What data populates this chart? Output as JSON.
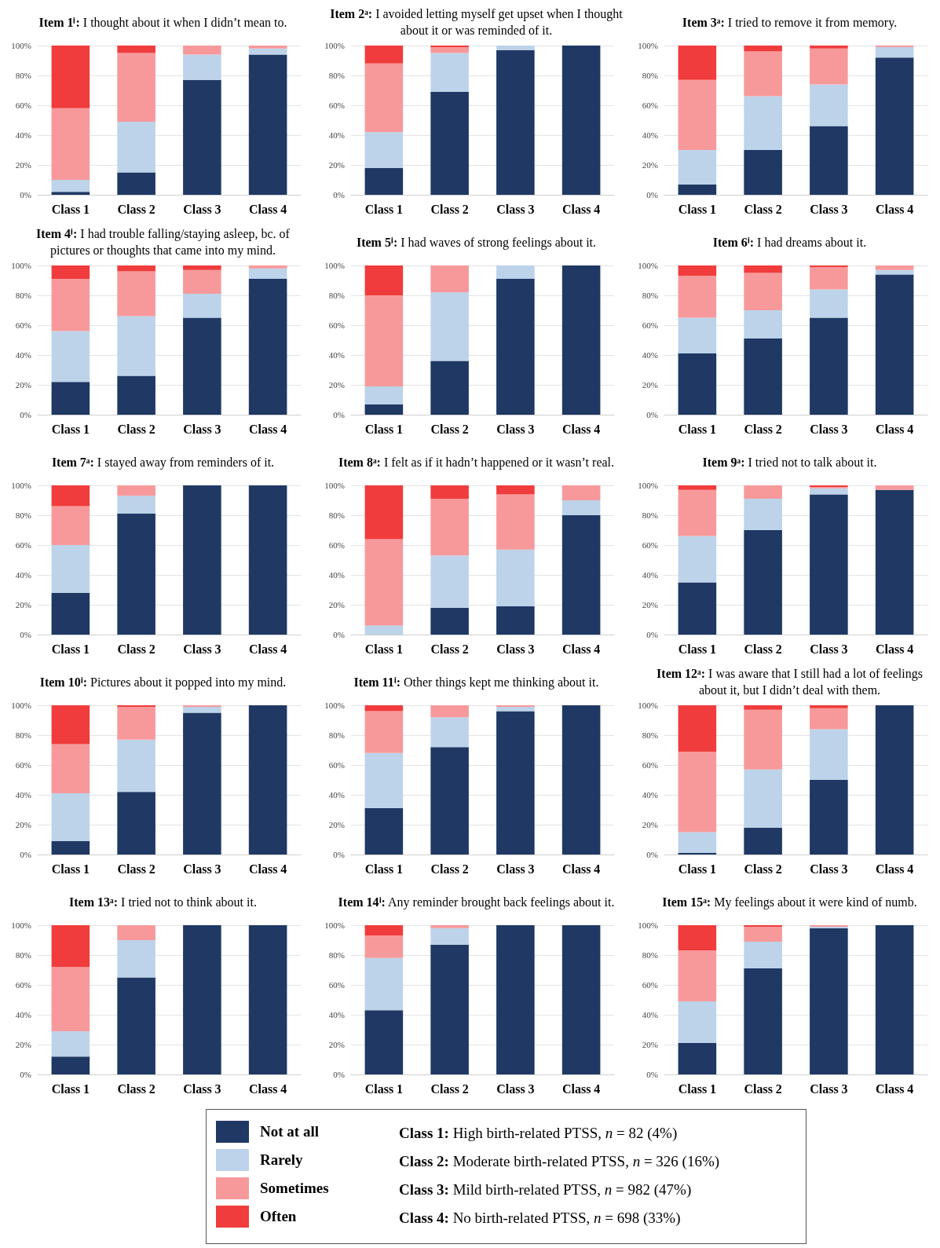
{
  "chart_data": [
    {
      "type": "bar",
      "stacked": true,
      "title": "Item 1ⁱ: I thought about it when I didn’t mean to.",
      "categories": [
        "Class 1",
        "Class 2",
        "Class 3",
        "Class 4"
      ],
      "series": [
        {
          "name": "Not at all",
          "color": "#1f3864",
          "values": [
            2,
            15,
            77,
            94
          ]
        },
        {
          "name": "Rarely",
          "color": "#bcd3ea",
          "values": [
            8,
            34,
            17,
            4
          ]
        },
        {
          "name": "Sometimes",
          "color": "#f7999b",
          "values": [
            48,
            46,
            6,
            2
          ]
        },
        {
          "name": "Often",
          "color": "#f03c3c",
          "values": [
            42,
            5,
            0,
            0
          ]
        }
      ],
      "ylim": [
        0,
        100
      ],
      "yticks": [
        {
          "value": 0,
          "label": "0%"
        },
        {
          "value": 20,
          "label": "20%"
        },
        {
          "value": 40,
          "label": "40%"
        },
        {
          "value": 60,
          "label": "60%"
        },
        {
          "value": 80,
          "label": "80%"
        },
        {
          "value": 100,
          "label": "100%"
        }
      ],
      "grid": "y",
      "legend": "bottom"
    },
    {
      "type": "bar",
      "stacked": true,
      "title": "Item 2ᵃ: I avoided letting myself get upset when I thought about it or was reminded of it.",
      "categories": [
        "Class 1",
        "Class 2",
        "Class 3",
        "Class 4"
      ],
      "series": [
        {
          "name": "Not at all",
          "color": "#1f3864",
          "values": [
            18,
            69,
            97,
            100
          ]
        },
        {
          "name": "Rarely",
          "color": "#bcd3ea",
          "values": [
            24,
            26,
            3,
            0
          ]
        },
        {
          "name": "Sometimes",
          "color": "#f7999b",
          "values": [
            46,
            4,
            0,
            0
          ]
        },
        {
          "name": "Often",
          "color": "#f03c3c",
          "values": [
            12,
            1,
            0,
            0
          ]
        }
      ],
      "ylim": [
        0,
        100
      ],
      "yticks": [
        {
          "value": 0,
          "label": "0%"
        },
        {
          "value": 20,
          "label": "20%"
        },
        {
          "value": 40,
          "label": "40%"
        },
        {
          "value": 60,
          "label": "60%"
        },
        {
          "value": 80,
          "label": "80%"
        },
        {
          "value": 100,
          "label": "100%"
        }
      ],
      "grid": "y",
      "legend": "bottom"
    },
    {
      "type": "bar",
      "stacked": true,
      "title": "Item 3ᵃ: I tried to remove it from memory.",
      "categories": [
        "Class 1",
        "Class 2",
        "Class 3",
        "Class 4"
      ],
      "series": [
        {
          "name": "Not at all",
          "color": "#1f3864",
          "values": [
            7,
            30,
            46,
            92
          ]
        },
        {
          "name": "Rarely",
          "color": "#bcd3ea",
          "values": [
            23,
            36,
            28,
            7
          ]
        },
        {
          "name": "Sometimes",
          "color": "#f7999b",
          "values": [
            47,
            30,
            24,
            1
          ]
        },
        {
          "name": "Often",
          "color": "#f03c3c",
          "values": [
            23,
            4,
            2,
            0
          ]
        }
      ],
      "ylim": [
        0,
        100
      ],
      "yticks": [
        {
          "value": 0,
          "label": "0%"
        },
        {
          "value": 20,
          "label": "20%"
        },
        {
          "value": 40,
          "label": "40%"
        },
        {
          "value": 60,
          "label": "60%"
        },
        {
          "value": 80,
          "label": "80%"
        },
        {
          "value": 100,
          "label": "100%"
        }
      ],
      "grid": "y",
      "legend": "bottom"
    },
    {
      "type": "bar",
      "stacked": true,
      "title": "Item 4ⁱ: I had trouble falling/staying asleep, bc. of pictures or thoughts that came into my mind.",
      "categories": [
        "Class 1",
        "Class 2",
        "Class 3",
        "Class 4"
      ],
      "series": [
        {
          "name": "Not at all",
          "color": "#1f3864",
          "values": [
            22,
            26,
            65,
            91
          ]
        },
        {
          "name": "Rarely",
          "color": "#bcd3ea",
          "values": [
            34,
            40,
            16,
            7
          ]
        },
        {
          "name": "Sometimes",
          "color": "#f7999b",
          "values": [
            35,
            30,
            16,
            2
          ]
        },
        {
          "name": "Often",
          "color": "#f03c3c",
          "values": [
            9,
            4,
            3,
            0
          ]
        }
      ],
      "ylim": [
        0,
        100
      ],
      "yticks": [
        {
          "value": 0,
          "label": "0%"
        },
        {
          "value": 20,
          "label": "20%"
        },
        {
          "value": 40,
          "label": "40%"
        },
        {
          "value": 60,
          "label": "60%"
        },
        {
          "value": 80,
          "label": "80%"
        },
        {
          "value": 100,
          "label": "100%"
        }
      ],
      "grid": "y",
      "legend": "bottom"
    },
    {
      "type": "bar",
      "stacked": true,
      "title": "Item 5ⁱ: I had waves of strong feelings about it.",
      "categories": [
        "Class 1",
        "Class 2",
        "Class 3",
        "Class 4"
      ],
      "series": [
        {
          "name": "Not at all",
          "color": "#1f3864",
          "values": [
            7,
            36,
            91,
            100
          ]
        },
        {
          "name": "Rarely",
          "color": "#bcd3ea",
          "values": [
            12,
            46,
            9,
            0
          ]
        },
        {
          "name": "Sometimes",
          "color": "#f7999b",
          "values": [
            61,
            18,
            0,
            0
          ]
        },
        {
          "name": "Often",
          "color": "#f03c3c",
          "values": [
            20,
            0,
            0,
            0
          ]
        }
      ],
      "ylim": [
        0,
        100
      ],
      "yticks": [
        {
          "value": 0,
          "label": "0%"
        },
        {
          "value": 20,
          "label": "20%"
        },
        {
          "value": 40,
          "label": "40%"
        },
        {
          "value": 60,
          "label": "60%"
        },
        {
          "value": 80,
          "label": "80%"
        },
        {
          "value": 100,
          "label": "100%"
        }
      ],
      "grid": "y",
      "legend": "bottom"
    },
    {
      "type": "bar",
      "stacked": true,
      "title": "Item 6ⁱ: I had dreams about it.",
      "categories": [
        "Class 1",
        "Class 2",
        "Class 3",
        "Class 4"
      ],
      "series": [
        {
          "name": "Not at all",
          "color": "#1f3864",
          "values": [
            41,
            51,
            65,
            94
          ]
        },
        {
          "name": "Rarely",
          "color": "#bcd3ea",
          "values": [
            24,
            19,
            19,
            3
          ]
        },
        {
          "name": "Sometimes",
          "color": "#f7999b",
          "values": [
            28,
            25,
            15,
            3
          ]
        },
        {
          "name": "Often",
          "color": "#f03c3c",
          "values": [
            7,
            5,
            1,
            0
          ]
        }
      ],
      "ylim": [
        0,
        100
      ],
      "yticks": [
        {
          "value": 0,
          "label": "0%"
        },
        {
          "value": 20,
          "label": "20%"
        },
        {
          "value": 40,
          "label": "40%"
        },
        {
          "value": 60,
          "label": "60%"
        },
        {
          "value": 80,
          "label": "80%"
        },
        {
          "value": 100,
          "label": "100%"
        }
      ],
      "grid": "y",
      "legend": "bottom"
    },
    {
      "type": "bar",
      "stacked": true,
      "title": "Item 7ᵃ: I stayed away from reminders of it.",
      "categories": [
        "Class 1",
        "Class 2",
        "Class 3",
        "Class 4"
      ],
      "series": [
        {
          "name": "Not at all",
          "color": "#1f3864",
          "values": [
            28,
            81,
            100,
            100
          ]
        },
        {
          "name": "Rarely",
          "color": "#bcd3ea",
          "values": [
            32,
            12,
            0,
            0
          ]
        },
        {
          "name": "Sometimes",
          "color": "#f7999b",
          "values": [
            26,
            7,
            0,
            0
          ]
        },
        {
          "name": "Often",
          "color": "#f03c3c",
          "values": [
            14,
            0,
            0,
            0
          ]
        }
      ],
      "ylim": [
        0,
        100
      ],
      "yticks": [
        {
          "value": 0,
          "label": "0%"
        },
        {
          "value": 20,
          "label": "20%"
        },
        {
          "value": 40,
          "label": "40%"
        },
        {
          "value": 60,
          "label": "60%"
        },
        {
          "value": 80,
          "label": "80%"
        },
        {
          "value": 100,
          "label": "100%"
        }
      ],
      "grid": "y",
      "legend": "bottom"
    },
    {
      "type": "bar",
      "stacked": true,
      "title": "Item 8ᵃ: I felt as if it hadn’t happened or it wasn’t real.",
      "categories": [
        "Class 1",
        "Class 2",
        "Class 3",
        "Class 4"
      ],
      "series": [
        {
          "name": "Not at all",
          "color": "#1f3864",
          "values": [
            0,
            18,
            19,
            80
          ]
        },
        {
          "name": "Rarely",
          "color": "#bcd3ea",
          "values": [
            6,
            35,
            38,
            10
          ]
        },
        {
          "name": "Sometimes",
          "color": "#f7999b",
          "values": [
            58,
            38,
            37,
            10
          ]
        },
        {
          "name": "Often",
          "color": "#f03c3c",
          "values": [
            36,
            9,
            6,
            0
          ]
        }
      ],
      "ylim": [
        0,
        100
      ],
      "yticks": [
        {
          "value": 0,
          "label": "0%"
        },
        {
          "value": 20,
          "label": "20%"
        },
        {
          "value": 40,
          "label": "40%"
        },
        {
          "value": 60,
          "label": "60%"
        },
        {
          "value": 80,
          "label": "80%"
        },
        {
          "value": 100,
          "label": "100%"
        }
      ],
      "grid": "y",
      "legend": "bottom"
    },
    {
      "type": "bar",
      "stacked": true,
      "title": "Item 9ᵃ: I tried not to talk about it.",
      "categories": [
        "Class 1",
        "Class 2",
        "Class 3",
        "Class 4"
      ],
      "series": [
        {
          "name": "Not at all",
          "color": "#1f3864",
          "values": [
            35,
            70,
            94,
            97
          ]
        },
        {
          "name": "Rarely",
          "color": "#bcd3ea",
          "values": [
            31,
            21,
            4,
            0
          ]
        },
        {
          "name": "Sometimes",
          "color": "#f7999b",
          "values": [
            31,
            9,
            1,
            3
          ]
        },
        {
          "name": "Often",
          "color": "#f03c3c",
          "values": [
            3,
            0,
            1,
            0
          ]
        }
      ],
      "ylim": [
        0,
        100
      ],
      "yticks": [
        {
          "value": 0,
          "label": "0%"
        },
        {
          "value": 20,
          "label": "20%"
        },
        {
          "value": 40,
          "label": "40%"
        },
        {
          "value": 60,
          "label": "60%"
        },
        {
          "value": 80,
          "label": "80%"
        },
        {
          "value": 100,
          "label": "100%"
        }
      ],
      "grid": "y",
      "legend": "bottom"
    },
    {
      "type": "bar",
      "stacked": true,
      "title": "Item 10ⁱ: Pictures about it popped into my mind.",
      "categories": [
        "Class 1",
        "Class 2",
        "Class 3",
        "Class 4"
      ],
      "series": [
        {
          "name": "Not at all",
          "color": "#1f3864",
          "values": [
            9,
            42,
            95,
            100
          ]
        },
        {
          "name": "Rarely",
          "color": "#bcd3ea",
          "values": [
            32,
            35,
            4,
            0
          ]
        },
        {
          "name": "Sometimes",
          "color": "#f7999b",
          "values": [
            33,
            22,
            1,
            0
          ]
        },
        {
          "name": "Often",
          "color": "#f03c3c",
          "values": [
            26,
            1,
            0,
            0
          ]
        }
      ],
      "ylim": [
        0,
        100
      ],
      "yticks": [
        {
          "value": 0,
          "label": "0%"
        },
        {
          "value": 20,
          "label": "20%"
        },
        {
          "value": 40,
          "label": "40%"
        },
        {
          "value": 60,
          "label": "60%"
        },
        {
          "value": 80,
          "label": "80%"
        },
        {
          "value": 100,
          "label": "100%"
        }
      ],
      "grid": "y",
      "legend": "bottom"
    },
    {
      "type": "bar",
      "stacked": true,
      "title": "Item 11ⁱ: Other things kept me thinking about it.",
      "categories": [
        "Class 1",
        "Class 2",
        "Class 3",
        "Class 4"
      ],
      "series": [
        {
          "name": "Not at all",
          "color": "#1f3864",
          "values": [
            31,
            72,
            96,
            100
          ]
        },
        {
          "name": "Rarely",
          "color": "#bcd3ea",
          "values": [
            37,
            20,
            3,
            0
          ]
        },
        {
          "name": "Sometimes",
          "color": "#f7999b",
          "values": [
            28,
            8,
            1,
            0
          ]
        },
        {
          "name": "Often",
          "color": "#f03c3c",
          "values": [
            4,
            0,
            0,
            0
          ]
        }
      ],
      "ylim": [
        0,
        100
      ],
      "yticks": [
        {
          "value": 0,
          "label": "0%"
        },
        {
          "value": 20,
          "label": "20%"
        },
        {
          "value": 40,
          "label": "40%"
        },
        {
          "value": 60,
          "label": "60%"
        },
        {
          "value": 80,
          "label": "80%"
        },
        {
          "value": 100,
          "label": "100%"
        }
      ],
      "grid": "y",
      "legend": "bottom"
    },
    {
      "type": "bar",
      "stacked": true,
      "title": "Item 12ᵃ: I was aware that I still had a lot of feelings about it, but I didn’t deal with them.",
      "categories": [
        "Class 1",
        "Class 2",
        "Class 3",
        "Class 4"
      ],
      "series": [
        {
          "name": "Not at all",
          "color": "#1f3864",
          "values": [
            1,
            18,
            50,
            100
          ]
        },
        {
          "name": "Rarely",
          "color": "#bcd3ea",
          "values": [
            14,
            39,
            34,
            0
          ]
        },
        {
          "name": "Sometimes",
          "color": "#f7999b",
          "values": [
            54,
            40,
            14,
            0
          ]
        },
        {
          "name": "Often",
          "color": "#f03c3c",
          "values": [
            31,
            3,
            2,
            0
          ]
        }
      ],
      "ylim": [
        0,
        100
      ],
      "yticks": [
        {
          "value": 0,
          "label": "0%"
        },
        {
          "value": 20,
          "label": "20%"
        },
        {
          "value": 40,
          "label": "40%"
        },
        {
          "value": 60,
          "label": "60%"
        },
        {
          "value": 80,
          "label": "80%"
        },
        {
          "value": 100,
          "label": "100%"
        }
      ],
      "grid": "y",
      "legend": "bottom"
    },
    {
      "type": "bar",
      "stacked": true,
      "title": "Item 13ᵃ: I tried not to think about it.",
      "categories": [
        "Class 1",
        "Class 2",
        "Class 3",
        "Class 4"
      ],
      "series": [
        {
          "name": "Not at all",
          "color": "#1f3864",
          "values": [
            12,
            65,
            100,
            100
          ]
        },
        {
          "name": "Rarely",
          "color": "#bcd3ea",
          "values": [
            17,
            25,
            0,
            0
          ]
        },
        {
          "name": "Sometimes",
          "color": "#f7999b",
          "values": [
            43,
            10,
            0,
            0
          ]
        },
        {
          "name": "Often",
          "color": "#f03c3c",
          "values": [
            28,
            0,
            0,
            0
          ]
        }
      ],
      "ylim": [
        0,
        100
      ],
      "yticks": [
        {
          "value": 0,
          "label": "0%"
        },
        {
          "value": 20,
          "label": "20%"
        },
        {
          "value": 40,
          "label": "40%"
        },
        {
          "value": 60,
          "label": "60%"
        },
        {
          "value": 80,
          "label": "80%"
        },
        {
          "value": 100,
          "label": "100%"
        }
      ],
      "grid": "y",
      "legend": "bottom"
    },
    {
      "type": "bar",
      "stacked": true,
      "title": "Item 14ⁱ: Any reminder brought back feelings about it.",
      "categories": [
        "Class 1",
        "Class 2",
        "Class 3",
        "Class 4"
      ],
      "series": [
        {
          "name": "Not at all",
          "color": "#1f3864",
          "values": [
            43,
            87,
            100,
            100
          ]
        },
        {
          "name": "Rarely",
          "color": "#bcd3ea",
          "values": [
            35,
            11,
            0,
            0
          ]
        },
        {
          "name": "Sometimes",
          "color": "#f7999b",
          "values": [
            15,
            2,
            0,
            0
          ]
        },
        {
          "name": "Often",
          "color": "#f03c3c",
          "values": [
            7,
            0,
            0,
            0
          ]
        }
      ],
      "ylim": [
        0,
        100
      ],
      "yticks": [
        {
          "value": 0,
          "label": "0%"
        },
        {
          "value": 20,
          "label": "20%"
        },
        {
          "value": 40,
          "label": "40%"
        },
        {
          "value": 60,
          "label": "60%"
        },
        {
          "value": 80,
          "label": "80%"
        },
        {
          "value": 100,
          "label": "100%"
        }
      ],
      "grid": "y",
      "legend": "bottom"
    },
    {
      "type": "bar",
      "stacked": true,
      "title": "Item 15ᵃ: My feelings about it were kind of numb.",
      "categories": [
        "Class 1",
        "Class 2",
        "Class 3",
        "Class 4"
      ],
      "series": [
        {
          "name": "Not at all",
          "color": "#1f3864",
          "values": [
            21,
            71,
            98,
            100
          ]
        },
        {
          "name": "Rarely",
          "color": "#bcd3ea",
          "values": [
            28,
            18,
            1,
            0
          ]
        },
        {
          "name": "Sometimes",
          "color": "#f7999b",
          "values": [
            34,
            10,
            1,
            0
          ]
        },
        {
          "name": "Often",
          "color": "#f03c3c",
          "values": [
            17,
            1,
            0,
            0
          ]
        }
      ],
      "ylim": [
        0,
        100
      ],
      "yticks": [
        {
          "value": 0,
          "label": "0%"
        },
        {
          "value": 20,
          "label": "20%"
        },
        {
          "value": 40,
          "label": "40%"
        },
        {
          "value": 60,
          "label": "60%"
        },
        {
          "value": 80,
          "label": "80%"
        },
        {
          "value": 100,
          "label": "100%"
        }
      ],
      "grid": "y",
      "legend": "bottom"
    },
    {
      "type": "other",
      "annotations": [
        "Class 1: High birth-related PTSS, n = 82 (4%)",
        "Class 2: Moderate birth-related PTSS, n = 326 (16%)",
        "Class 3: Mild birth-related PTSS, n = 982 (47%)",
        "Class 4: No birth-related PTSS, n = 698 (33%)"
      ]
    }
  ]
}
